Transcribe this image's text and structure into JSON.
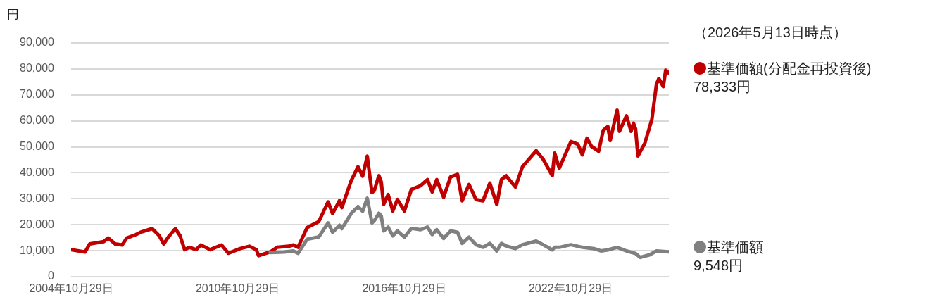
{
  "chart_data": {
    "type": "line",
    "ylabel": "円",
    "grid": "y",
    "legend": "right",
    "marker": "none",
    "line_style": "solid",
    "xlim": [
      "2004-10-29",
      "2026-05-13"
    ],
    "xticks": [
      {
        "value": "2004-10-29",
        "label": "2004年10月29日"
      },
      {
        "value": "2010-10-29",
        "label": "2010年10月29日"
      },
      {
        "value": "2016-10-29",
        "label": "2016年10月29日"
      },
      {
        "value": "2022-10-29",
        "label": "2022年10月29日"
      }
    ],
    "ylim": [
      0,
      90000
    ],
    "yticks": [
      0,
      {
        "value": 10000,
        "label": "10,000"
      },
      {
        "value": 20000,
        "label": "20,000"
      },
      {
        "value": 30000,
        "label": "30,000"
      },
      {
        "value": 40000,
        "label": "40,000"
      },
      {
        "value": 50000,
        "label": "50,000"
      },
      {
        "value": 60000,
        "label": "60,000"
      },
      {
        "value": 70000,
        "label": "70,000"
      },
      {
        "value": 80000,
        "label": "80,000"
      },
      {
        "value": 90000,
        "label": "90,000"
      }
    ],
    "annotations": [
      "（2026年5月13日時点）",
      {
        "text": "78,333円",
        "x": "2026-05-13",
        "y": 78333
      },
      {
        "text": "9,548円",
        "x": "2026-05-13",
        "y": 9548
      }
    ],
    "series": [
      {
        "name": "基準価額(分配金再投資後)",
        "color": "#c00000",
        "x": [
          "2004-10-29",
          "2005-05",
          "2005-07",
          "2006-01",
          "2006-03",
          "2006-06",
          "2006-09",
          "2006-11",
          "2007-03",
          "2007-05",
          "2007-10",
          "2008-01",
          "2008-03",
          "2008-05",
          "2008-08",
          "2008-10",
          "2008-12",
          "2009-02",
          "2009-05",
          "2009-07",
          "2009-11",
          "2010-04",
          "2010-07",
          "2010-12",
          "2011-04",
          "2011-07",
          "2011-08",
          "2012-01",
          "2012-04",
          "2012-09",
          "2012-11",
          "2013-01",
          "2013-05",
          "2013-10",
          "2014-02",
          "2014-04",
          "2014-07",
          "2014-08",
          "2014-12",
          "2015-03",
          "2015-05",
          "2015-07",
          "2015-09",
          "2015-10",
          "2015-12",
          "2016-01",
          "2016-02",
          "2016-04",
          "2016-06",
          "2016-08",
          "2016-11",
          "2017-02",
          "2017-06",
          "2017-09",
          "2017-11",
          "2018-01",
          "2018-04",
          "2018-07",
          "2018-10",
          "2018-12",
          "2019-03",
          "2019-06",
          "2019-09",
          "2019-12",
          "2020-03",
          "2020-05",
          "2020-07",
          "2020-11",
          "2021-02",
          "2021-08",
          "2021-11",
          "2022-03",
          "2022-04",
          "2022-06",
          "2022-11",
          "2023-02",
          "2023-04",
          "2023-06",
          "2023-08",
          "2023-11",
          "2024-01",
          "2024-03",
          "2024-04",
          "2024-07",
          "2024-08",
          "2024-11",
          "2025-01",
          "2025-02",
          "2025-03",
          "2025-04",
          "2025-07",
          "2025-10",
          "2025-12",
          "2026-01",
          "2026-03",
          "2026-04",
          "2026-05-13"
        ],
        "values": [
          10400,
          9500,
          12600,
          13500,
          14900,
          12600,
          12200,
          14900,
          16200,
          17100,
          18500,
          15800,
          12600,
          15300,
          18500,
          15800,
          10400,
          11300,
          10400,
          12200,
          10400,
          12200,
          9000,
          10800,
          11700,
          10400,
          8100,
          9500,
          11300,
          11700,
          12200,
          11300,
          18900,
          21200,
          28800,
          24300,
          29300,
          26600,
          36900,
          42300,
          38700,
          46400,
          32400,
          33100,
          38900,
          36500,
          27800,
          31600,
          25300,
          29700,
          25300,
          33600,
          35000,
          37400,
          32600,
          37400,
          30600,
          38400,
          39400,
          29200,
          35500,
          29700,
          29200,
          36000,
          27800,
          37400,
          38900,
          34500,
          42300,
          48500,
          45200,
          38900,
          47600,
          41800,
          52000,
          51000,
          46900,
          53300,
          50100,
          48300,
          56400,
          57800,
          52400,
          64100,
          56000,
          61900,
          56000,
          59100,
          56900,
          46500,
          51400,
          60500,
          74100,
          76300,
          73200,
          79500,
          78333
        ]
      },
      {
        "name": "基準価額",
        "color": "#808080",
        "x": [
          "2012-01",
          "2012-07",
          "2012-11",
          "2013-01",
          "2013-05",
          "2013-10",
          "2014-02",
          "2014-04",
          "2014-07",
          "2014-08",
          "2014-12",
          "2015-03",
          "2015-05",
          "2015-07",
          "2015-09",
          "2015-10",
          "2015-12",
          "2016-01",
          "2016-02",
          "2016-04",
          "2016-06",
          "2016-08",
          "2016-11",
          "2017-02",
          "2017-06",
          "2017-09",
          "2017-11",
          "2018-01",
          "2018-04",
          "2018-07",
          "2018-10",
          "2018-12",
          "2019-03",
          "2019-06",
          "2019-09",
          "2019-12",
          "2020-03",
          "2020-05",
          "2020-07",
          "2020-11",
          "2021-02",
          "2021-08",
          "2021-11",
          "2022-03",
          "2022-04",
          "2022-06",
          "2022-11",
          "2023-04",
          "2023-09",
          "2023-12",
          "2024-03",
          "2024-07",
          "2024-11",
          "2025-03",
          "2025-05",
          "2025-09",
          "2025-12",
          "2026-05-13"
        ],
        "values": [
          9300,
          9500,
          9900,
          9000,
          14400,
          15300,
          20700,
          17100,
          19800,
          18500,
          24300,
          27000,
          25200,
          30200,
          20700,
          21500,
          24400,
          23400,
          17600,
          19100,
          15700,
          17600,
          15200,
          18600,
          18100,
          19100,
          16200,
          18100,
          14700,
          17600,
          17100,
          12800,
          15200,
          12300,
          11300,
          12800,
          9900,
          12800,
          11800,
          10800,
          12300,
          13700,
          12300,
          10300,
          11300,
          11300,
          12300,
          11300,
          10800,
          9900,
          10300,
          11300,
          9900,
          8900,
          7400,
          8400,
          9900,
          9548
        ]
      }
    ]
  }
}
